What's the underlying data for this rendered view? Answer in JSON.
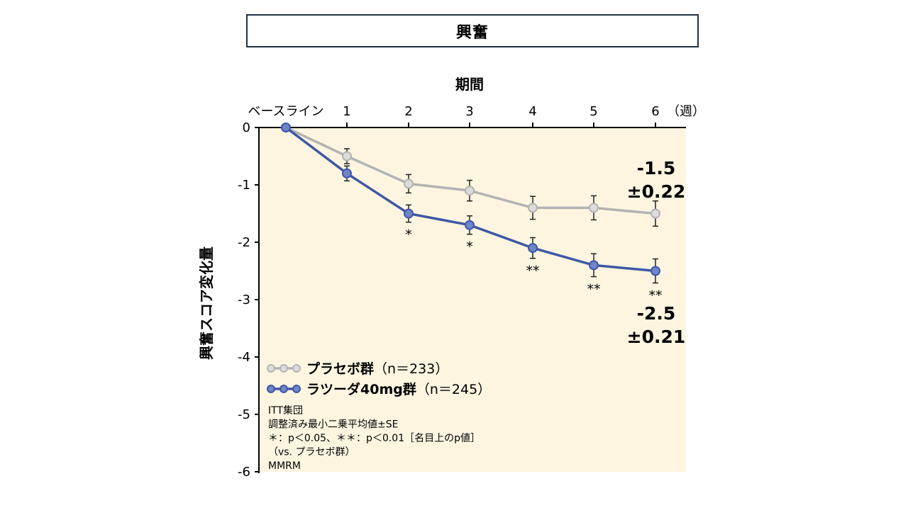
{
  "page": {
    "title": "興奮"
  },
  "chart_data": {
    "type": "line",
    "title": "興奮",
    "xlabel": "期間",
    "ylabel": "興奮スコア変化量",
    "categories": [
      "ベースライン",
      "1",
      "2",
      "3",
      "4",
      "5",
      "6"
    ],
    "x_unit_label": "（週）",
    "ylim": [
      -6,
      0
    ],
    "yticks": [
      "0",
      "-1",
      "-2",
      "-3",
      "-4",
      "-5",
      "-6"
    ],
    "series": [
      {
        "name": "プラセボ群",
        "n_label": "（n＝233）",
        "color": "#b3b3b3",
        "marker_fill": "#dcdcdc",
        "values": [
          0,
          -0.5,
          -0.98,
          -1.1,
          -1.4,
          -1.4,
          -1.5
        ],
        "errors": [
          0,
          0.13,
          0.16,
          0.18,
          0.2,
          0.21,
          0.22
        ],
        "end_value": "-1.5",
        "end_se": "±0.22"
      },
      {
        "name": "ラツーダ40mg群",
        "n_label": "（n＝245）",
        "color": "#3f57a6",
        "marker_fill": "#6e85c8",
        "values": [
          0,
          -0.8,
          -1.5,
          -1.7,
          -2.1,
          -2.4,
          -2.5
        ],
        "errors": [
          0,
          0.13,
          0.15,
          0.16,
          0.18,
          0.2,
          0.21
        ],
        "significance": [
          "",
          "",
          "*",
          "*",
          "**",
          "**",
          "**"
        ],
        "end_value": "-2.5",
        "end_se": "±0.21"
      }
    ],
    "notes": [
      "ITT集団",
      "調整済み最小二乗平均値±SE",
      "＊：p＜0.05、＊＊：p＜0.01［名目上のp値］",
      "（vs. プラセボ群）",
      "MMRM"
    ],
    "background_color": "#fdf5e0",
    "grid": false
  }
}
